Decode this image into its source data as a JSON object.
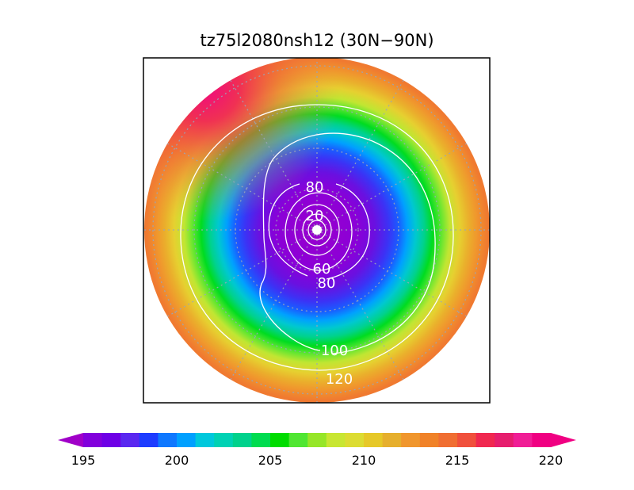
{
  "title": "tz75l2080nsh12 (30N−90N)",
  "map": {
    "projection": "north polar stereographic",
    "lat_range": "30N−90N",
    "grid": "dotted"
  },
  "contour_labels": [
    {
      "id": "c20",
      "text": "20"
    },
    {
      "id": "c60",
      "text": "60"
    },
    {
      "id": "c80a",
      "text": "80"
    },
    {
      "id": "c80b",
      "text": "80"
    },
    {
      "id": "c100",
      "text": "100"
    },
    {
      "id": "c120",
      "text": "120"
    }
  ],
  "colorbar": {
    "min": 195,
    "max": 220,
    "step": 1,
    "ticks": [
      "195",
      "200",
      "205",
      "210",
      "215",
      "220"
    ],
    "colors": [
      "#a000c8",
      "#8200dc",
      "#6e00e6",
      "#5a28f0",
      "#1e3cff",
      "#0f78ff",
      "#00a0ff",
      "#00c8dc",
      "#00d2b4",
      "#00d28c",
      "#00dc50",
      "#00dc00",
      "#50e632",
      "#96e628",
      "#c8e632",
      "#dcdc32",
      "#e6c828",
      "#e6af2d",
      "#f0962d",
      "#f08228",
      "#f06e32",
      "#f0503c",
      "#f02850",
      "#e61e6e",
      "#f01e96",
      "#f00082"
    ]
  }
}
